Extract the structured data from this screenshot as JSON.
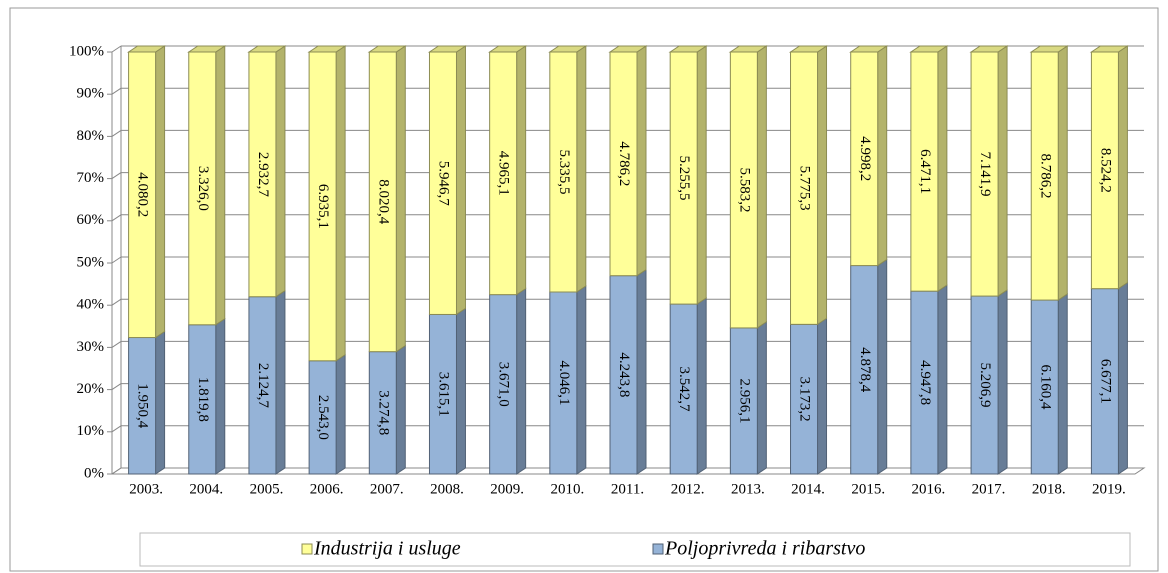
{
  "chart_data": {
    "type": "bar",
    "stacked": "percent",
    "categories": [
      "2003.",
      "2004.",
      "2005.",
      "2006.",
      "2007.",
      "2008.",
      "2009.",
      "2010.",
      "2011.",
      "2012.",
      "2013.",
      "2014.",
      "2015.",
      "2016.",
      "2017.",
      "2018.",
      "2019."
    ],
    "series": [
      {
        "name": "Industrija i usluge",
        "color": "#ffff99",
        "values": [
          4080.2,
          3326.0,
          2932.7,
          6935.1,
          8020.4,
          5946.7,
          4965.1,
          5335.5,
          4786.2,
          5255.5,
          5583.2,
          5775.3,
          4998.2,
          6471.1,
          7141.9,
          8786.2,
          8524.2
        ],
        "value_labels": [
          "4.080,2",
          "3.326,0",
          "2.932,7",
          "6.935,1",
          "8.020,4",
          "5.946,7",
          "4.965,1",
          "5.335,5",
          "4.786,2",
          "5.255,5",
          "5.583,2",
          "5.775,3",
          "4.998,2",
          "6.471,1",
          "7.141,9",
          "8.786,2",
          "8.524,2"
        ]
      },
      {
        "name": "Poljoprivreda i ribarstvo",
        "color": "#95b3d7",
        "values": [
          1950.4,
          1819.8,
          2124.7,
          2543.0,
          3274.8,
          3615.1,
          3671.0,
          4046.1,
          4243.8,
          3542.7,
          2956.1,
          3173.2,
          4878.4,
          4947.8,
          5206.9,
          6160.4,
          6677.1
        ],
        "value_labels": [
          "1.950,4",
          "1.819,8",
          "2.124,7",
          "2.543,0",
          "3.274,8",
          "3.615,1",
          "3.671,0",
          "4.046,1",
          "4.243,8",
          "3.542,7",
          "2.956,1",
          "3.173,2",
          "4.878,4",
          "4.947,8",
          "5.206,9",
          "6.160,4",
          "6.677,1"
        ]
      }
    ],
    "ylim": [
      0,
      100
    ],
    "yticks": [
      {
        "value": 0,
        "label": "0%"
      },
      {
        "value": 10,
        "label": "10%"
      },
      {
        "value": 20,
        "label": "20%"
      },
      {
        "value": 30,
        "label": "30%"
      },
      {
        "value": 40,
        "label": "40%"
      },
      {
        "value": 50,
        "label": "50%"
      },
      {
        "value": 60,
        "label": "60%"
      },
      {
        "value": 70,
        "label": "70%"
      },
      {
        "value": 80,
        "label": "80%"
      },
      {
        "value": 90,
        "label": "90%"
      },
      {
        "value": 100,
        "label": "100%"
      }
    ],
    "grid": true,
    "legend": "bottom"
  }
}
